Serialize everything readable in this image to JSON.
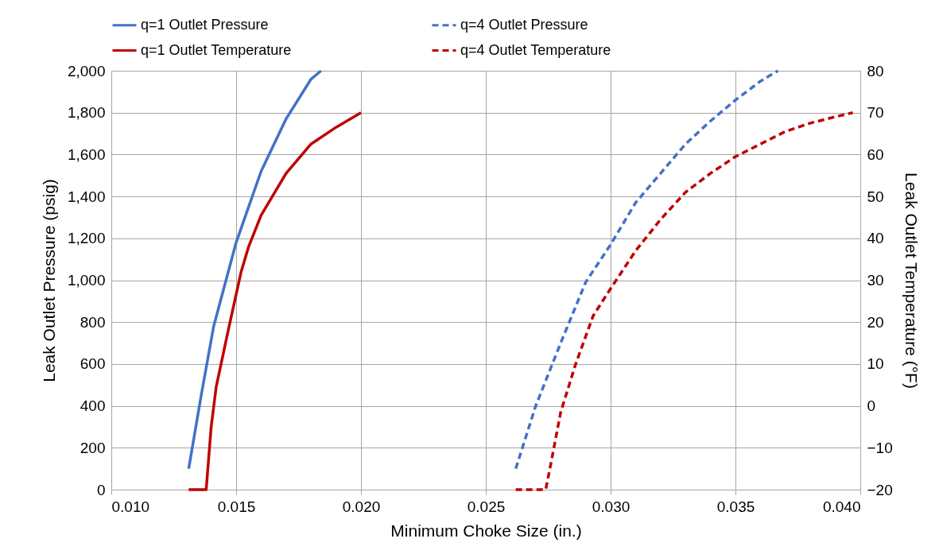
{
  "chart_data": {
    "type": "line",
    "xlabel": "Minimum Choke Size (in.)",
    "ylabel": "Leak Outlet Pressure (psig)",
    "y2label": "Leak Outlet Temperature (°F)",
    "xlim": [
      0.01,
      0.04
    ],
    "xticks": [
      {
        "value": 0.01,
        "label": "0.010"
      },
      {
        "value": 0.015,
        "label": "0.015"
      },
      {
        "value": 0.02,
        "label": "0.020"
      },
      {
        "value": 0.025,
        "label": "0.025"
      },
      {
        "value": 0.03,
        "label": "0.030"
      },
      {
        "value": 0.035,
        "label": "0.035"
      },
      {
        "value": 0.04,
        "label": "0.040"
      }
    ],
    "ylim": [
      0,
      2000
    ],
    "yticks": [
      0,
      200,
      400,
      600,
      800,
      {
        "value": 1000,
        "label": "1,000"
      },
      {
        "value": 1200,
        "label": "1,200"
      },
      {
        "value": 1400,
        "label": "1,400"
      },
      {
        "value": 1600,
        "label": "1,600"
      },
      {
        "value": 1800,
        "label": "1,800"
      },
      {
        "value": 2000,
        "label": "2,000"
      }
    ],
    "y2lim": [
      -20,
      80
    ],
    "y2ticks": [
      -20,
      -10,
      0,
      10,
      20,
      30,
      40,
      50,
      60,
      70,
      80
    ],
    "grid": true,
    "legend": "top",
    "series": [
      {
        "name": "q=1 Outlet Pressure",
        "color": "#4472c4",
        "line_style": "solid",
        "x": [
          0.0131,
          0.0136,
          0.0141,
          0.015,
          0.016,
          0.017,
          0.018,
          0.0184
        ],
        "values": [
          100,
          450,
          780,
          1180,
          1520,
          1770,
          1960,
          2000
        ]
      },
      {
        "name": "q=4 Outlet Pressure",
        "color": "#4472c4",
        "line_style": "dashed",
        "x": [
          0.0262,
          0.027,
          0.028,
          0.029,
          0.03,
          0.031,
          0.032,
          0.033,
          0.034,
          0.035,
          0.036,
          0.0367
        ],
        "values": [
          100,
          400,
          700,
          990,
          1170,
          1370,
          1510,
          1650,
          1760,
          1860,
          1950,
          2000
        ]
      },
      {
        "name": "q=1 Outlet Temperature",
        "color": "#c00000",
        "line_style": "solid",
        "axis": "y2",
        "x": [
          0.0131,
          0.0138,
          0.014,
          0.0142,
          0.0147,
          0.0152,
          0.0155,
          0.016,
          0.017,
          0.018,
          0.019,
          0.02
        ],
        "values": [
          -20,
          -20,
          -5,
          4.5,
          18.5,
          32,
          38,
          45.5,
          55.5,
          62.5,
          66.5,
          70
        ]
      },
      {
        "name": "q=4 Outlet Temperature",
        "color": "#c00000",
        "line_style": "dashed",
        "axis": "y2",
        "x": [
          0.0262,
          0.0274,
          0.0276,
          0.028,
          0.0286,
          0.0293,
          0.03,
          0.031,
          0.032,
          0.033,
          0.034,
          0.035,
          0.036,
          0.037,
          0.038,
          0.039,
          0.0397
        ],
        "values": [
          -20,
          -20,
          -14,
          -1.5,
          10,
          21.5,
          28,
          37,
          44.5,
          51,
          55.5,
          59.5,
          62.5,
          65.5,
          67.5,
          69,
          70
        ]
      }
    ]
  }
}
